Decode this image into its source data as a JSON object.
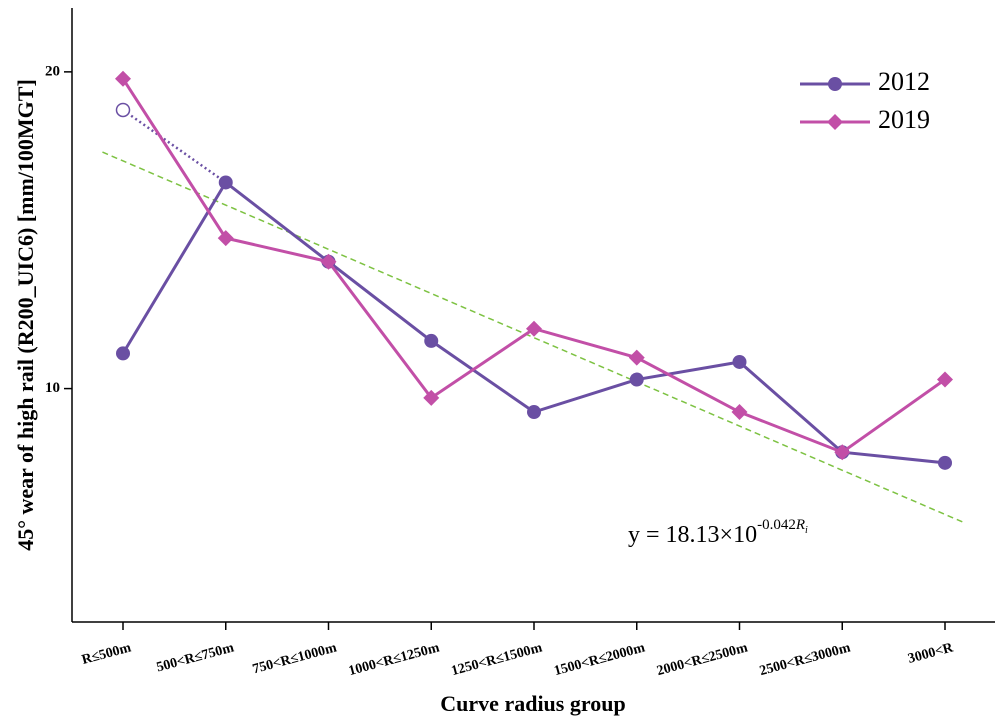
{
  "chart_data": {
    "type": "line",
    "y_label": "45° wear of high rail (R200_UIC6) [mm/100MGT]",
    "x_label": "Curve radius group",
    "categories": [
      "R≤500m",
      "500<R≤750m",
      "750<R≤1000m",
      "1000<R≤1250m",
      "1250<R≤1500m",
      "1500<R≤2000m",
      "2000<R≤2500m",
      "2500<R≤3000m",
      "3000<R"
    ],
    "series": [
      {
        "name": "2012",
        "color": "#6a4fa3",
        "marker": "circle",
        "values": [
          10.8,
          15.7,
          13.2,
          11.1,
          9.5,
          10.2,
          10.6,
          8.7,
          8.5
        ]
      },
      {
        "name": "2019",
        "color": "#c24fa7",
        "marker": "diamond",
        "values": [
          19.7,
          13.9,
          13.2,
          9.8,
          11.4,
          10.7,
          9.5,
          8.7,
          10.2
        ]
      }
    ],
    "projected": {
      "color": "#6a4fa3",
      "marker": "open-circle",
      "style": "dotted",
      "values": [
        18.4,
        15.7,
        null,
        null,
        null,
        null,
        null,
        null,
        null
      ]
    },
    "trendline": {
      "coefficient": 18.13,
      "exponent": -0.042,
      "color": "#7dc242",
      "label": {
        "base": "y = 18.13×10",
        "power": "-0.042",
        "variable": "R",
        "subscript": "i"
      }
    },
    "log_scale": true,
    "ylim": [
      6,
      23
    ],
    "yticks": [
      10,
      20
    ],
    "legend": "top-right"
  }
}
